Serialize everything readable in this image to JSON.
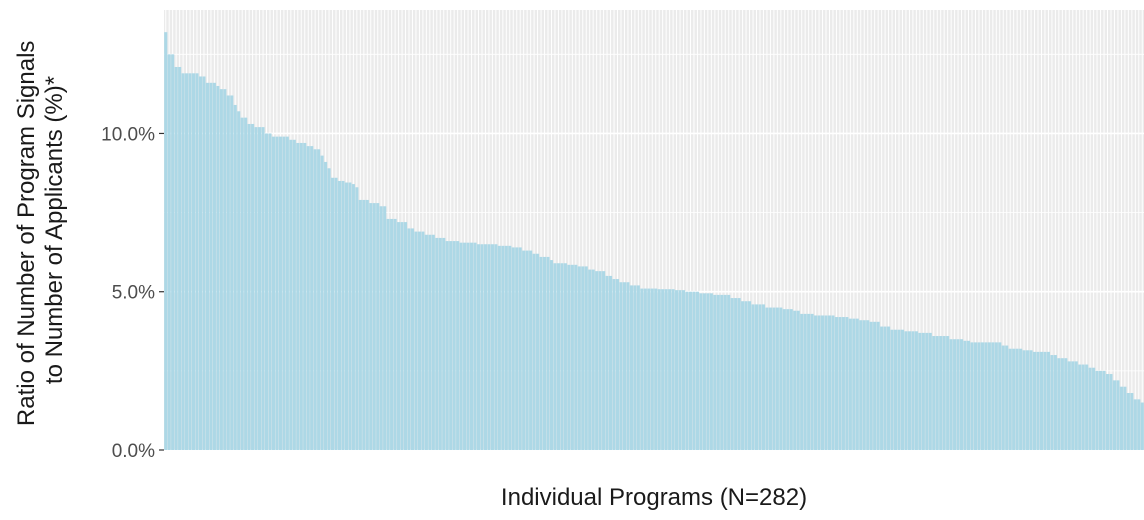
{
  "chart_data": {
    "type": "bar",
    "xlabel": "Individual Programs (N=282)",
    "ylabel_lines": [
      "Ratio of Number of Program Signals",
      "to Number of Applicants (%)*"
    ],
    "n": 282,
    "ylim": [
      0,
      13.9
    ],
    "y_ticks": [
      {
        "value": 0,
        "label": "0.0%"
      },
      {
        "value": 5,
        "label": "5.0%"
      },
      {
        "value": 10,
        "label": "10.0%"
      }
    ],
    "x_tick_labels_shown": false,
    "grid": true,
    "bar_color": "#add8e6",
    "panel_color": "#ebebeb",
    "grid_color": "#ffffff",
    "breakpoints": [
      [
        0,
        13.2
      ],
      [
        1,
        12.5
      ],
      [
        3,
        12.1
      ],
      [
        5,
        11.9
      ],
      [
        10,
        11.8
      ],
      [
        12,
        11.6
      ],
      [
        15,
        11.5
      ],
      [
        16,
        11.4
      ],
      [
        18,
        11.2
      ],
      [
        20,
        10.9
      ],
      [
        21,
        10.7
      ],
      [
        22,
        10.5
      ],
      [
        24,
        10.3
      ],
      [
        26,
        10.2
      ],
      [
        29,
        10.0
      ],
      [
        31,
        9.9
      ],
      [
        36,
        9.8
      ],
      [
        38,
        9.7
      ],
      [
        41,
        9.6
      ],
      [
        43,
        9.5
      ],
      [
        45,
        9.3
      ],
      [
        46,
        9.1
      ],
      [
        47,
        8.9
      ],
      [
        48,
        8.6
      ],
      [
        50,
        8.5
      ],
      [
        52,
        8.45
      ],
      [
        54,
        8.4
      ],
      [
        55,
        8.3
      ],
      [
        56,
        7.9
      ],
      [
        59,
        7.8
      ],
      [
        60,
        7.8
      ],
      [
        62,
        7.7
      ],
      [
        64,
        7.3
      ],
      [
        67,
        7.2
      ],
      [
        70,
        7.0
      ],
      [
        72,
        6.9
      ],
      [
        75,
        6.8
      ],
      [
        78,
        6.7
      ],
      [
        81,
        6.6
      ],
      [
        85,
        6.55
      ],
      [
        90,
        6.5
      ],
      [
        96,
        6.45
      ],
      [
        100,
        6.4
      ],
      [
        103,
        6.3
      ],
      [
        106,
        6.2
      ],
      [
        108,
        6.1
      ],
      [
        111,
        6.0
      ],
      [
        112,
        5.9
      ],
      [
        116,
        5.85
      ],
      [
        119,
        5.8
      ],
      [
        122,
        5.7
      ],
      [
        124,
        5.65
      ],
      [
        127,
        5.5
      ],
      [
        129,
        5.4
      ],
      [
        131,
        5.3
      ],
      [
        134,
        5.2
      ],
      [
        137,
        5.1
      ],
      [
        142,
        5.08
      ],
      [
        147,
        5.05
      ],
      [
        150,
        5.0
      ],
      [
        154,
        4.95
      ],
      [
        158,
        4.9
      ],
      [
        163,
        4.8
      ],
      [
        166,
        4.7
      ],
      [
        169,
        4.6
      ],
      [
        173,
        4.5
      ],
      [
        178,
        4.45
      ],
      [
        181,
        4.4
      ],
      [
        183,
        4.3
      ],
      [
        187,
        4.25
      ],
      [
        193,
        4.2
      ],
      [
        197,
        4.15
      ],
      [
        200,
        4.1
      ],
      [
        203,
        4.05
      ],
      [
        206,
        3.9
      ],
      [
        209,
        3.8
      ],
      [
        213,
        3.75
      ],
      [
        217,
        3.7
      ],
      [
        221,
        3.6
      ],
      [
        226,
        3.5
      ],
      [
        230,
        3.45
      ],
      [
        232,
        3.4
      ],
      [
        241,
        3.3
      ],
      [
        243,
        3.2
      ],
      [
        247,
        3.15
      ],
      [
        250,
        3.1
      ],
      [
        255,
        3.0
      ],
      [
        257,
        2.9
      ],
      [
        260,
        2.8
      ],
      [
        263,
        2.7
      ],
      [
        266,
        2.6
      ],
      [
        268,
        2.5
      ],
      [
        271,
        2.4
      ],
      [
        273,
        2.2
      ],
      [
        275,
        2.0
      ],
      [
        277,
        1.8
      ],
      [
        279,
        1.6
      ],
      [
        281,
        1.5
      ]
    ]
  }
}
